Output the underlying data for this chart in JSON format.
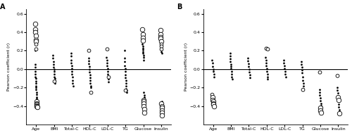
{
  "categories": [
    "Age",
    "BMI",
    "Total-C",
    "HDL-C",
    "LDL-C",
    "TG",
    "Glucose",
    "Insulin"
  ],
  "ylabel": "Pearson coefficient (r)",
  "panel_A_label": "A",
  "panel_B_label": "B",
  "ylim": [
    -0.6,
    0.65
  ],
  "yticks": [
    -0.4,
    -0.2,
    0.0,
    0.2,
    0.4,
    0.6
  ],
  "background_color": "#ffffff",
  "panel_A": {
    "Age": {
      "filled": [
        0.2,
        0.05,
        0.02,
        -0.02,
        -0.05,
        -0.08,
        -0.1,
        -0.13,
        -0.15,
        -0.18,
        -0.2,
        -0.22,
        -0.25,
        -0.27,
        -0.3,
        -0.32,
        -0.35,
        -0.37,
        -0.38,
        -0.39,
        -0.4
      ],
      "open": [
        0.49,
        0.43,
        0.4,
        0.36,
        0.32,
        0.3,
        0.27,
        0.22,
        -0.35,
        -0.37,
        -0.38,
        -0.39,
        -0.4,
        -0.41
      ]
    },
    "BMI": {
      "filled": [
        0.15,
        0.12,
        0.08,
        0.05,
        0.02,
        0.0,
        -0.02,
        -0.05,
        -0.08,
        -0.1,
        -0.12,
        -0.15
      ],
      "open": [
        -0.13
      ]
    },
    "Total-C": {
      "filled": [
        0.17,
        0.14,
        0.1,
        0.07,
        0.04,
        0.01,
        -0.02,
        -0.05,
        -0.08,
        -0.12,
        -0.15,
        -0.18
      ],
      "open": []
    },
    "HDL-C": {
      "filled": [
        0.12,
        0.09,
        0.06,
        0.03,
        0.0,
        -0.03,
        -0.06,
        -0.09,
        -0.12,
        -0.15,
        -0.18,
        -0.2
      ],
      "open": [
        0.2,
        -0.25
      ]
    },
    "LDL-C": {
      "filled": [
        0.13,
        0.1,
        0.07,
        0.04,
        0.01,
        -0.02,
        -0.05,
        -0.08,
        -0.11,
        -0.14
      ],
      "open": [
        0.22,
        -0.08
      ]
    },
    "TG": {
      "filled": [
        0.2,
        0.12,
        0.08,
        0.04,
        0.01,
        -0.02,
        -0.06,
        -0.09,
        -0.12,
        -0.15,
        -0.18,
        -0.21,
        -0.23,
        -0.25
      ],
      "open": [
        -0.23
      ]
    },
    "Glucose": {
      "filled": [
        0.3,
        0.27,
        0.25,
        0.23,
        0.21,
        0.19,
        0.17,
        0.15,
        0.13,
        0.1,
        -0.25,
        -0.28,
        -0.3,
        -0.32,
        -0.35
      ],
      "open": [
        0.43,
        0.38,
        0.34,
        0.31,
        -0.33,
        -0.35,
        -0.37,
        -0.4,
        -0.43,
        -0.47
      ]
    },
    "Insulin": {
      "filled": [
        0.35,
        0.32,
        0.29,
        0.27,
        0.25,
        0.23,
        0.21,
        0.19,
        0.17,
        -0.35,
        -0.37,
        -0.38,
        -0.4
      ],
      "open": [
        0.42,
        0.38,
        0.35,
        0.33,
        0.3,
        0.27,
        0.25,
        0.22,
        -0.37,
        -0.4,
        -0.42,
        -0.45,
        -0.47,
        -0.5
      ]
    }
  },
  "panel_B": {
    "Age": {
      "filled": [
        0.1,
        0.07,
        0.03,
        0.0,
        -0.02,
        -0.05,
        -0.08
      ],
      "open": [
        -0.27,
        -0.3,
        -0.33,
        -0.35,
        -0.37,
        -0.38,
        -0.4
      ]
    },
    "BMI": {
      "filled": [
        0.17,
        0.14,
        0.11,
        0.08,
        0.05,
        0.03,
        0.01,
        -0.02,
        -0.05,
        -0.08,
        -0.11
      ],
      "open": []
    },
    "Total-C": {
      "filled": [
        0.12,
        0.09,
        0.06,
        0.03,
        0.0,
        -0.03,
        -0.06,
        -0.09
      ],
      "open": []
    },
    "HDL-C": {
      "filled": [
        0.13,
        0.1,
        0.07,
        0.04,
        0.01,
        -0.02,
        -0.05,
        -0.08,
        -0.11
      ],
      "open": [
        0.23,
        0.22
      ]
    },
    "LDL-C": {
      "filled": [
        0.1,
        0.07,
        0.04,
        0.01,
        -0.02,
        -0.05,
        -0.08
      ],
      "open": []
    },
    "TG": {
      "filled": [
        0.08,
        0.05,
        0.02,
        -0.01,
        -0.04,
        -0.08,
        -0.12,
        -0.15,
        -0.18,
        -0.21
      ],
      "open": [
        -0.22
      ]
    },
    "Glucose": {
      "filled": [
        -0.22,
        -0.25,
        -0.28,
        -0.31,
        -0.34,
        -0.37,
        -0.39,
        -0.41
      ],
      "open": [
        -0.03,
        -0.42,
        -0.45,
        -0.47
      ]
    },
    "Insulin": {
      "filled": [
        -0.2,
        -0.23,
        -0.26,
        -0.29,
        -0.32,
        -0.35,
        -0.38,
        -0.41,
        -0.44,
        -0.46
      ],
      "open": [
        -0.07,
        -0.3,
        -0.33,
        -0.48
      ]
    }
  },
  "filled_size": 4,
  "open_size_small": 12,
  "open_size_large": 22,
  "open_threshold": 0.3
}
